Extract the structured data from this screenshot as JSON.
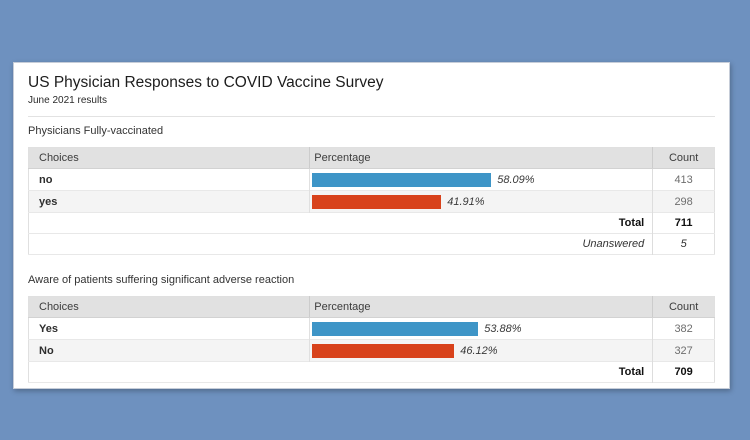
{
  "page": {
    "background_color": "#6e91bf",
    "card_color": "#ffffff"
  },
  "colors": {
    "bar_blue": "#3e95c7",
    "bar_orange": "#d8421b",
    "header_row": "#e1e1e1"
  },
  "header": {
    "title": "US Physician Responses to COVID Vaccine Survey",
    "subtitle": "June 2021 results"
  },
  "tables": [
    {
      "section_title": "Physicians Fully-vaccinated",
      "headers": [
        "Choices",
        "Percentage",
        "Count"
      ],
      "rows": [
        {
          "choice": "no",
          "pct": 58.09,
          "pct_label": "58.09%",
          "count": "413",
          "bar_color": "#3e95c7"
        },
        {
          "choice": "yes",
          "pct": 41.91,
          "pct_label": "41.91%",
          "count": "298",
          "bar_color": "#d8421b"
        }
      ],
      "total_label": "Total",
      "total_value": "711",
      "unanswered_label": "Unanswered",
      "unanswered_value": "5"
    },
    {
      "section_title": "Aware of patients suffering significant adverse reaction",
      "headers": [
        "Choices",
        "Percentage",
        "Count"
      ],
      "rows": [
        {
          "choice": "Yes",
          "pct": 53.88,
          "pct_label": "53.88%",
          "count": "382",
          "bar_color": "#3e95c7"
        },
        {
          "choice": "No",
          "pct": 46.12,
          "pct_label": "46.12%",
          "count": "327",
          "bar_color": "#d8421b"
        }
      ],
      "total_label": "Total",
      "total_value": "709"
    }
  ],
  "chart_data": [
    {
      "type": "bar",
      "orientation": "horizontal",
      "title": "Physicians Fully-vaccinated",
      "categories": [
        "no",
        "yes"
      ],
      "series": [
        {
          "name": "Percentage",
          "values": [
            58.09,
            41.91
          ]
        },
        {
          "name": "Count",
          "values": [
            413,
            298
          ]
        }
      ],
      "bar_colors": [
        "#3e95c7",
        "#d8421b"
      ],
      "total": 711,
      "unanswered": 5,
      "xlabel": "Percentage",
      "xlim": [
        0,
        100
      ]
    },
    {
      "type": "bar",
      "orientation": "horizontal",
      "title": "Aware of patients suffering significant adverse reaction",
      "categories": [
        "Yes",
        "No"
      ],
      "series": [
        {
          "name": "Percentage",
          "values": [
            53.88,
            46.12
          ]
        },
        {
          "name": "Count",
          "values": [
            382,
            327
          ]
        }
      ],
      "bar_colors": [
        "#3e95c7",
        "#d8421b"
      ],
      "total": 709,
      "xlabel": "Percentage",
      "xlim": [
        0,
        100
      ]
    }
  ]
}
